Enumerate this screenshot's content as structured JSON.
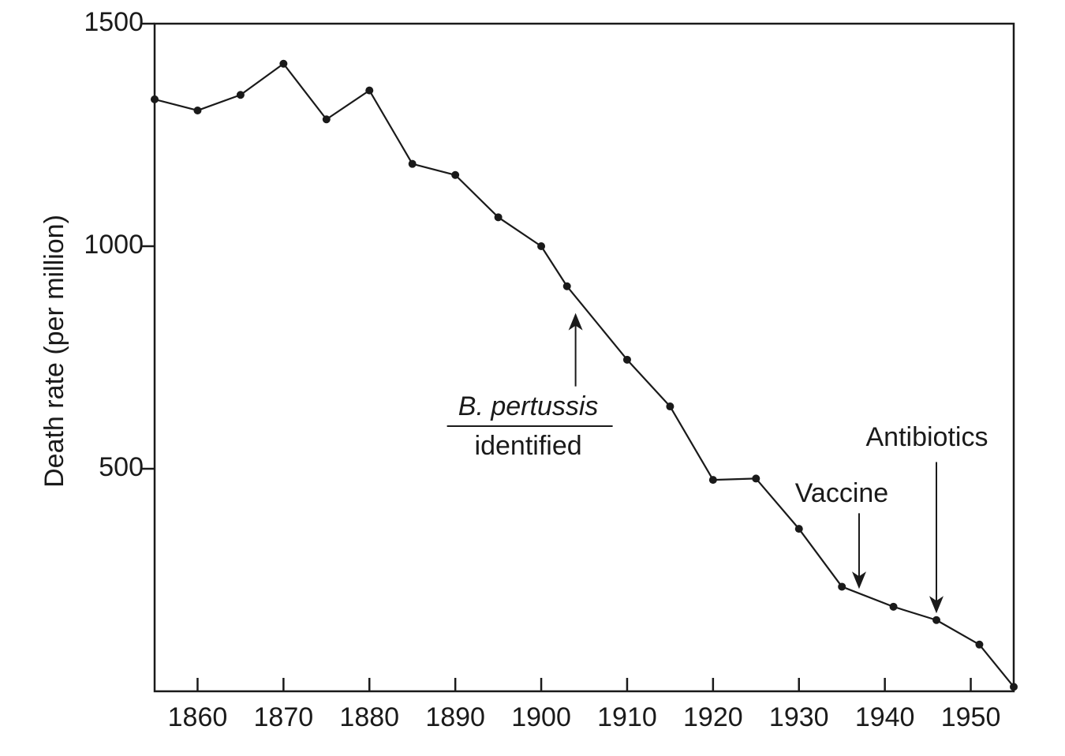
{
  "chart_data": {
    "type": "line",
    "title": "",
    "xlabel": "",
    "ylabel": "Death rate (per million)",
    "xlim": [
      1855,
      1955
    ],
    "ylim": [
      0,
      1500
    ],
    "x_ticks": [
      1860,
      1870,
      1880,
      1890,
      1900,
      1910,
      1920,
      1930,
      1940,
      1950
    ],
    "x_tick_labels": [
      "1860",
      "1870",
      "1880",
      "1890",
      "1900",
      "1910",
      "1920",
      "1930",
      "1940",
      "1950"
    ],
    "y_ticks": [
      500,
      1000,
      1500
    ],
    "y_tick_labels": [
      "500",
      "1000",
      "1500"
    ],
    "grid": false,
    "series": [
      {
        "x": [
          1855,
          1860,
          1865,
          1870,
          1875,
          1880,
          1885,
          1890,
          1895,
          1900,
          1903,
          1910,
          1915,
          1920,
          1925,
          1930,
          1935,
          1941,
          1946,
          1951,
          1955
        ],
        "y": [
          1330,
          1305,
          1340,
          1410,
          1285,
          1350,
          1185,
          1160,
          1065,
          1000,
          910,
          745,
          640,
          475,
          478,
          365,
          235,
          190,
          160,
          105,
          10
        ]
      }
    ],
    "annotations": [
      {
        "text_italic": "B. pertussis",
        "text": "identified",
        "x": 1904,
        "y_tip": 850,
        "y_tail": 685
      },
      {
        "text": "Vaccine",
        "x": 1937,
        "y_tip": 230,
        "y_tail": 400
      },
      {
        "text": "Antibiotics",
        "x": 1946,
        "y_tip": 175,
        "y_tail": 515
      }
    ]
  }
}
